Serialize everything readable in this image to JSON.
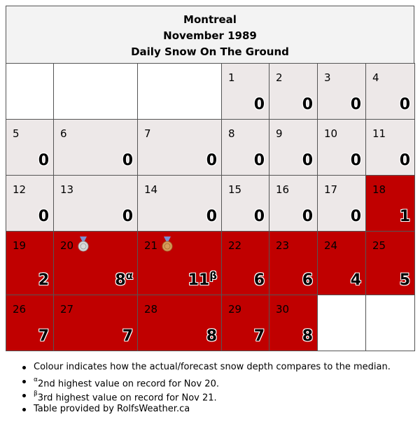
{
  "header": {
    "city": "Montreal",
    "month": "November 1989",
    "subtitle": "Daily Snow On The Ground"
  },
  "colors": {
    "below_median": "#ede8e8",
    "above_median": "#c00000",
    "header_bg": "#f3f3f3"
  },
  "weeks": [
    [
      {
        "empty": true
      },
      {
        "empty": true
      },
      {
        "empty": true
      },
      {
        "day": "1",
        "value": "0",
        "level": "gray"
      },
      {
        "day": "2",
        "value": "0",
        "level": "gray"
      },
      {
        "day": "3",
        "value": "0",
        "level": "gray"
      },
      {
        "day": "4",
        "value": "0",
        "level": "gray"
      }
    ],
    [
      {
        "day": "5",
        "value": "0",
        "level": "gray"
      },
      {
        "day": "6",
        "value": "0",
        "level": "gray"
      },
      {
        "day": "7",
        "value": "0",
        "level": "gray"
      },
      {
        "day": "8",
        "value": "0",
        "level": "gray"
      },
      {
        "day": "9",
        "value": "0",
        "level": "gray"
      },
      {
        "day": "10",
        "value": "0",
        "level": "gray"
      },
      {
        "day": "11",
        "value": "0",
        "level": "gray"
      }
    ],
    [
      {
        "day": "12",
        "value": "0",
        "level": "gray"
      },
      {
        "day": "13",
        "value": "0",
        "level": "gray"
      },
      {
        "day": "14",
        "value": "0",
        "level": "gray"
      },
      {
        "day": "15",
        "value": "0",
        "level": "gray"
      },
      {
        "day": "16",
        "value": "0",
        "level": "gray"
      },
      {
        "day": "17",
        "value": "0",
        "level": "gray"
      },
      {
        "day": "18",
        "value": "1",
        "level": "red"
      }
    ],
    [
      {
        "day": "19",
        "value": "2",
        "level": "red"
      },
      {
        "day": "20",
        "value": "8",
        "mark": "α",
        "medal": "silver-medal-icon",
        "level": "red"
      },
      {
        "day": "21",
        "value": "11",
        "mark": "β",
        "medal": "bronze-medal-icon",
        "level": "red"
      },
      {
        "day": "22",
        "value": "6",
        "level": "red"
      },
      {
        "day": "23",
        "value": "6",
        "level": "red"
      },
      {
        "day": "24",
        "value": "4",
        "level": "red"
      },
      {
        "day": "25",
        "value": "5",
        "level": "red"
      }
    ],
    [
      {
        "day": "26",
        "value": "7",
        "level": "red"
      },
      {
        "day": "27",
        "value": "7",
        "level": "red"
      },
      {
        "day": "28",
        "value": "8",
        "level": "red"
      },
      {
        "day": "29",
        "value": "7",
        "level": "red"
      },
      {
        "day": "30",
        "value": "8",
        "level": "red"
      },
      {
        "empty": true
      },
      {
        "empty": true
      }
    ]
  ],
  "notes": [
    {
      "mark": "",
      "text": "Colour indicates how the actual/forecast snow depth compares to the median."
    },
    {
      "mark": "α",
      "text": "2nd highest value on record for Nov 20."
    },
    {
      "mark": "β",
      "text": "3rd highest value on record for Nov 21."
    },
    {
      "mark": "",
      "text": "Table provided by RolfsWeather.ca"
    }
  ]
}
